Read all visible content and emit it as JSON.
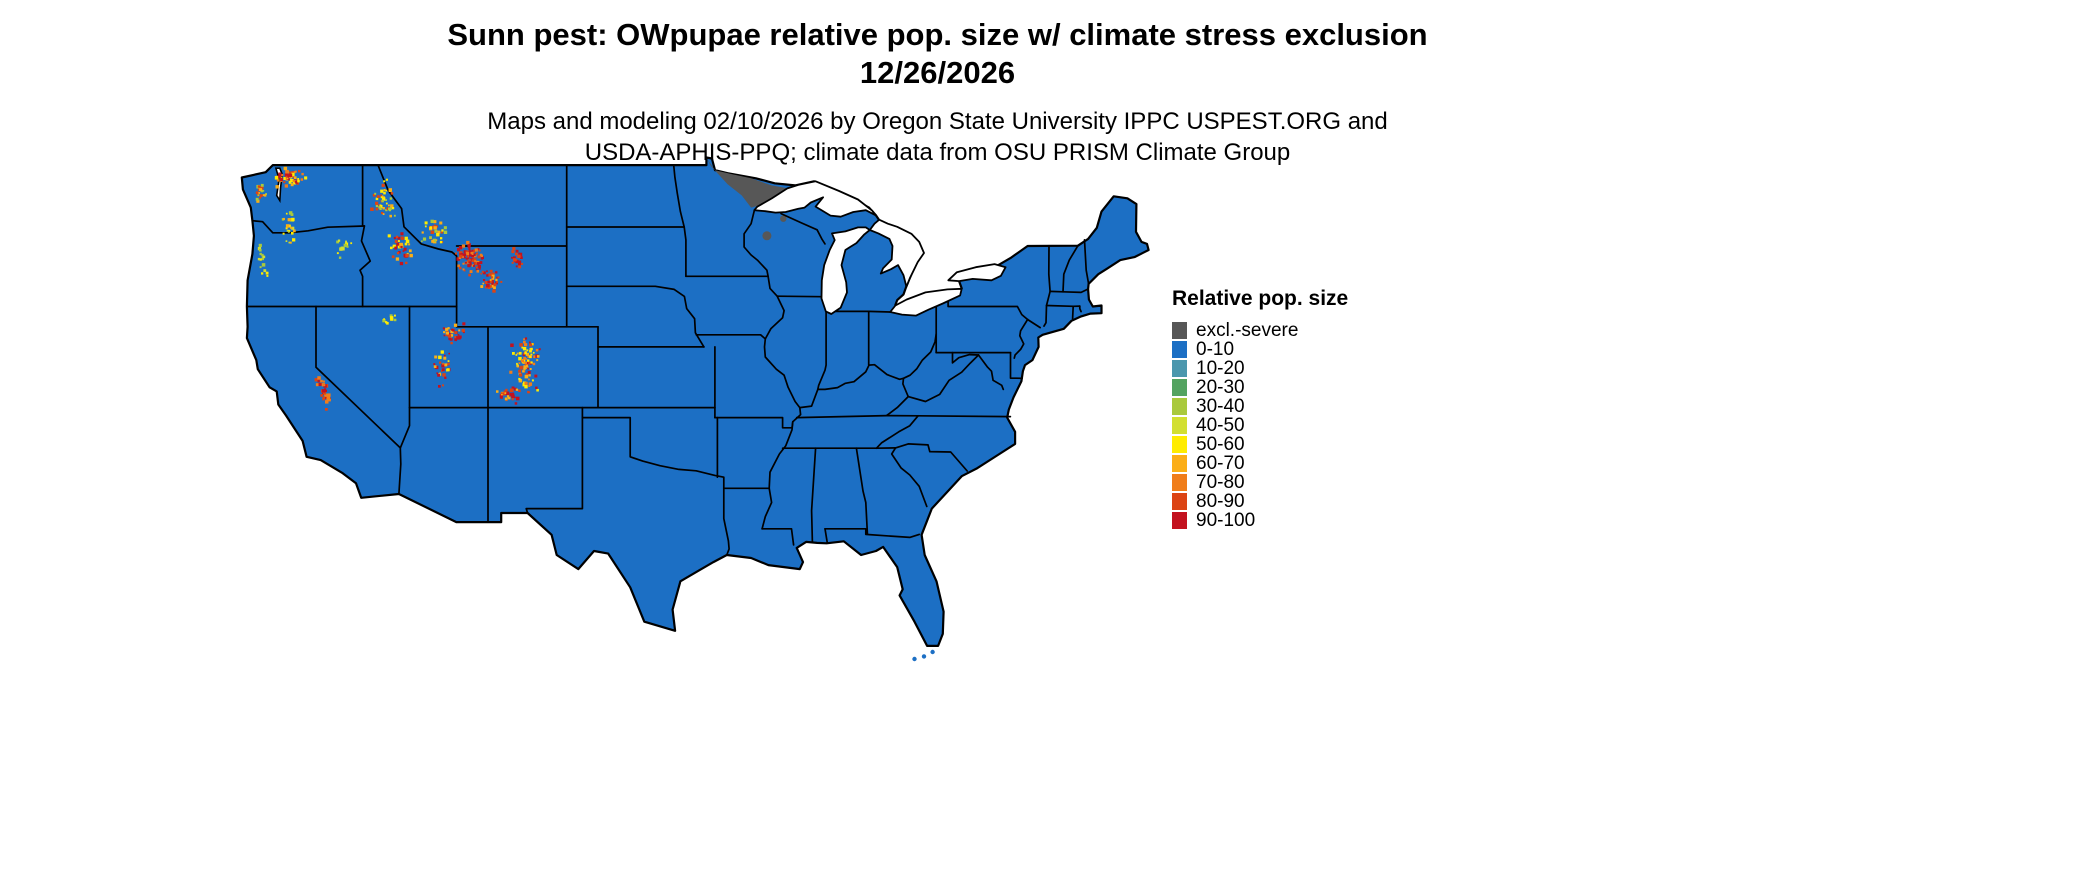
{
  "header": {
    "title_line1": "Sunn pest: OWpupae relative pop. size w/ climate stress exclusion",
    "title_line2": "12/26/2026",
    "subtitle_line1": "Maps and modeling 02/10/2026 by Oregon State University IPPC USPEST.ORG and",
    "subtitle_line2": "USDA-APHIS-PPQ; climate data from OSU PRISM Climate Group"
  },
  "legend": {
    "title": "Relative pop. size",
    "entries": [
      {
        "label": "excl.-severe",
        "color": "#575757"
      },
      {
        "label": "0-10",
        "color": "#1C6FC4"
      },
      {
        "label": "10-20",
        "color": "#4B97AD"
      },
      {
        "label": "20-30",
        "color": "#53A360"
      },
      {
        "label": "30-40",
        "color": "#A9C93C"
      },
      {
        "label": "40-50",
        "color": "#D2DF30"
      },
      {
        "label": "50-60",
        "color": "#FFEC00"
      },
      {
        "label": "60-70",
        "color": "#FBAE17"
      },
      {
        "label": "70-80",
        "color": "#F07D1A"
      },
      {
        "label": "80-90",
        "color": "#DC4414"
      },
      {
        "label": "90-100",
        "color": "#C3121F"
      }
    ]
  },
  "map": {
    "background": "#ffffff",
    "border_color": "#000000",
    "land_color_label": "0-10",
    "exclusion_label": "excl.-severe",
    "hotspots": [
      {
        "name": "north-cascades-wa",
        "lon": -121.6,
        "lat": 48.35,
        "dlon": 1.1,
        "dlat": 0.6,
        "n": 60,
        "seed": 11,
        "palette": [
          "90-100",
          "80-90",
          "70-80",
          "60-70",
          "50-60"
        ]
      },
      {
        "name": "olympics-wa",
        "lon": -123.55,
        "lat": 47.65,
        "dlon": 0.45,
        "dlat": 0.5,
        "n": 20,
        "seed": 12,
        "palette": [
          "80-90",
          "60-70",
          "30-40"
        ]
      },
      {
        "name": "south-cascades",
        "lon": -121.7,
        "lat": 45.9,
        "dlon": 0.45,
        "dlat": 1.05,
        "n": 24,
        "seed": 13,
        "palette": [
          "50-60",
          "60-70",
          "30-40",
          "40-50"
        ]
      },
      {
        "name": "oregon-coast-range",
        "lon": -123.35,
        "lat": 44.3,
        "dlon": 0.35,
        "dlat": 1.1,
        "n": 16,
        "seed": 14,
        "palette": [
          "30-40",
          "40-50",
          "50-60"
        ]
      },
      {
        "name": "blue-mountains",
        "lon": -118.3,
        "lat": 44.9,
        "dlon": 0.8,
        "dlat": 0.6,
        "n": 13,
        "seed": 15,
        "palette": [
          "30-40",
          "50-60",
          "40-50"
        ]
      },
      {
        "name": "idaho-panhandle",
        "lon": -115.6,
        "lat": 47.2,
        "dlon": 0.95,
        "dlat": 1.15,
        "n": 48,
        "seed": 16,
        "palette": [
          "50-60",
          "60-70",
          "30-40",
          "80-90"
        ]
      },
      {
        "name": "central-idaho",
        "lon": -114.7,
        "lat": 44.9,
        "dlon": 0.9,
        "dlat": 0.8,
        "n": 40,
        "seed": 17,
        "palette": [
          "60-70",
          "80-90",
          "50-60",
          "90-100"
        ]
      },
      {
        "name": "southwest-montana",
        "lon": -112.4,
        "lat": 45.7,
        "dlon": 1.0,
        "dlat": 0.7,
        "n": 34,
        "seed": 18,
        "palette": [
          "50-60",
          "60-70",
          "30-40",
          "80-90"
        ]
      },
      {
        "name": "yellowstone-absaroka",
        "lon": -110.2,
        "lat": 44.4,
        "dlon": 0.95,
        "dlat": 0.9,
        "n": 90,
        "seed": 19,
        "palette": [
          "90-100",
          "90-100",
          "80-90",
          "70-80"
        ]
      },
      {
        "name": "wind-river-range",
        "lon": -108.9,
        "lat": 43.3,
        "dlon": 0.75,
        "dlat": 0.6,
        "n": 40,
        "seed": 20,
        "palette": [
          "90-100",
          "80-90",
          "60-70"
        ]
      },
      {
        "name": "bighorn-mountains",
        "lon": -107.2,
        "lat": 44.3,
        "dlon": 0.4,
        "dlat": 0.6,
        "n": 22,
        "seed": 21,
        "palette": [
          "90-100",
          "80-90"
        ]
      },
      {
        "name": "uinta-wasatch",
        "lon": -111.3,
        "lat": 40.7,
        "dlon": 0.85,
        "dlat": 0.55,
        "n": 36,
        "seed": 22,
        "palette": [
          "90-100",
          "80-90",
          "60-70"
        ]
      },
      {
        "name": "central-utah-plateaus",
        "lon": -111.9,
        "lat": 38.9,
        "dlon": 0.6,
        "dlat": 0.95,
        "n": 30,
        "seed": 23,
        "palette": [
          "80-90",
          "90-100",
          "60-70",
          "50-60"
        ]
      },
      {
        "name": "colorado-rockies",
        "lon": -106.6,
        "lat": 39.2,
        "dlon": 1.05,
        "dlat": 1.6,
        "n": 95,
        "seed": 24,
        "palette": [
          "90-100",
          "80-90",
          "70-80",
          "60-70",
          "50-60"
        ]
      },
      {
        "name": "san-juan-mountains",
        "lon": -107.8,
        "lat": 37.6,
        "dlon": 0.7,
        "dlat": 0.5,
        "n": 24,
        "seed": 25,
        "palette": [
          "80-90",
          "90-100",
          "60-70"
        ]
      },
      {
        "name": "sierra-nevada",
        "lon": -119.45,
        "lat": 37.8,
        "dlon": 0.35,
        "dlat": 0.95,
        "n": 36,
        "seed": 26,
        "slope": -0.45,
        "palette": [
          "90-100",
          "80-90",
          "70-80"
        ]
      },
      {
        "name": "northeast-nevada",
        "lon": -115.3,
        "lat": 41.4,
        "dlon": 0.55,
        "dlat": 0.45,
        "n": 9,
        "seed": 27,
        "palette": [
          "30-40",
          "50-60"
        ]
      }
    ]
  }
}
